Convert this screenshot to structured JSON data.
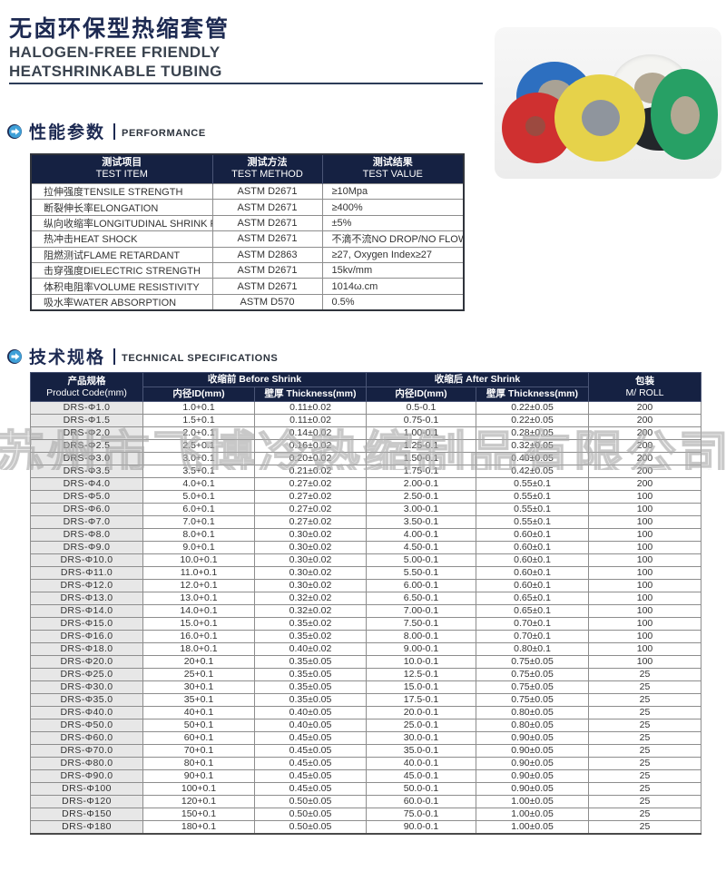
{
  "header": {
    "title_cn": "无卤环保型热缩套管",
    "subtitle_line1": "HALOGEN-FREE FRIENDLY",
    "subtitle_line2": "HEATSHRINKABLE TUBING"
  },
  "watermark_text": "苏州市飞博冷热缩制品有限公司",
  "photo": {
    "rolls": [
      "blue",
      "white",
      "black",
      "red",
      "yellow",
      "green"
    ],
    "colors": {
      "blue": "#2d6fc0",
      "white": "#f4f4f1",
      "black": "#23262a",
      "red": "#cf3030",
      "yellow": "#e6d24a",
      "green": "#27a065"
    }
  },
  "colors": {
    "accent_navy": "#1d2a52",
    "table_header_bg": "#152142",
    "icon_blue": "#3fa0d8"
  },
  "sections": {
    "performance": {
      "title_cn": "性能参数",
      "title_en": "PERFORMANCE"
    },
    "specs": {
      "title_cn": "技术规格",
      "title_en": "TECHNICAL SPECIFICATIONS"
    }
  },
  "performance_table": {
    "headers": [
      {
        "cn": "测试项目",
        "en": "TEST ITEM"
      },
      {
        "cn": "测试方法",
        "en": "TEST METHOD"
      },
      {
        "cn": "测试结果",
        "en": "TEST VALUE"
      }
    ],
    "rows": [
      [
        "拉伸强度TENSILE STRENGTH",
        "ASTM D2671",
        "≥10Mpa"
      ],
      [
        "断裂伸长率ELONGATION",
        "ASTM D2671",
        "≥400%"
      ],
      [
        "纵向收缩率LONGITUDINAL SHRINK RATIO",
        "ASTM D2671",
        "±5%"
      ],
      [
        "热冲击HEAT SHOCK",
        "ASTM D2671",
        "不滴不流NO DROP/NO FLOW"
      ],
      [
        "阻燃测试FLAME RETARDANT",
        "ASTM D2863",
        "≥27, Oxygen Index≥27"
      ],
      [
        "击穿强度DIELECTRIC STRENGTH",
        "ASTM D2671",
        "15kv/mm"
      ],
      [
        "体积电阻率VOLUME RESISTIVITY",
        "ASTM D2671",
        "1014ω.cm"
      ],
      [
        "吸水率WATER ABSORPTION",
        "ASTM D570",
        "0.5%"
      ]
    ]
  },
  "spec_table": {
    "product_col": {
      "cn": "产品规格",
      "en": "Product Code(mm)"
    },
    "before_group": {
      "label": "收缩前 Before Shrink",
      "id": "内径ID(mm)",
      "thickness": "壁厚 Thickness(mm)"
    },
    "after_group": {
      "label": "收缩后 After Shrink",
      "id": "内径ID(mm)",
      "thickness": "壁厚 Thickness(mm)"
    },
    "pack_col": {
      "cn": "包装",
      "en": "M/ ROLL"
    },
    "rows": [
      [
        "DRS-Φ1.0",
        "1.0+0.1",
        "0.11±0.02",
        "0.5-0.1",
        "0.22±0.05",
        "200"
      ],
      [
        "DRS-Φ1.5",
        "1.5+0.1",
        "0.11±0.02",
        "0.75-0.1",
        "0.22±0.05",
        "200"
      ],
      [
        "DRS-Φ2.0",
        "2.0+0.1",
        "0.14±0.02",
        "1.00-0.1",
        "0.28±0.05",
        "200"
      ],
      [
        "DRS-Φ2.5",
        "2.5+0.1",
        "0.16±0.02",
        "1.25-0.1",
        "0.32±0.05",
        "200"
      ],
      [
        "DRS-Φ3.0",
        "3.0+0.1",
        "0.20±0.02",
        "1.50-0.1",
        "0.40±0.05",
        "200"
      ],
      [
        "DRS-Φ3.5",
        "3.5+0.1",
        "0.21±0.02",
        "1.75-0.1",
        "0.42±0.05",
        "200"
      ],
      [
        "DRS-Φ4.0",
        "4.0+0.1",
        "0.27±0.02",
        "2.00-0.1",
        "0.55±0.1",
        "200"
      ],
      [
        "DRS-Φ5.0",
        "5.0+0.1",
        "0.27±0.02",
        "2.50-0.1",
        "0.55±0.1",
        "100"
      ],
      [
        "DRS-Φ6.0",
        "6.0+0.1",
        "0.27±0.02",
        "3.00-0.1",
        "0.55±0.1",
        "100"
      ],
      [
        "DRS-Φ7.0",
        "7.0+0.1",
        "0.27±0.02",
        "3.50-0.1",
        "0.55±0.1",
        "100"
      ],
      [
        "DRS-Φ8.0",
        "8.0+0.1",
        "0.30±0.02",
        "4.00-0.1",
        "0.60±0.1",
        "100"
      ],
      [
        "DRS-Φ9.0",
        "9.0+0.1",
        "0.30±0.02",
        "4.50-0.1",
        "0.60±0.1",
        "100"
      ],
      [
        "DRS-Φ10.0",
        "10.0+0.1",
        "0.30±0.02",
        "5.00-0.1",
        "0.60±0.1",
        "100"
      ],
      [
        "DRS-Φ11.0",
        "11.0+0.1",
        "0.30±0.02",
        "5.50-0.1",
        "0.60±0.1",
        "100"
      ],
      [
        "DRS-Φ12.0",
        "12.0+0.1",
        "0.30±0.02",
        "6.00-0.1",
        "0.60±0.1",
        "100"
      ],
      [
        "DRS-Φ13.0",
        "13.0+0.1",
        "0.32±0.02",
        "6.50-0.1",
        "0.65±0.1",
        "100"
      ],
      [
        "DRS-Φ14.0",
        "14.0+0.1",
        "0.32±0.02",
        "7.00-0.1",
        "0.65±0.1",
        "100"
      ],
      [
        "DRS-Φ15.0",
        "15.0+0.1",
        "0.35±0.02",
        "7.50-0.1",
        "0.70±0.1",
        "100"
      ],
      [
        "DRS-Φ16.0",
        "16.0+0.1",
        "0.35±0.02",
        "8.00-0.1",
        "0.70±0.1",
        "100"
      ],
      [
        "DRS-Φ18.0",
        "18.0+0.1",
        "0.40±0.02",
        "9.00-0.1",
        "0.80±0.1",
        "100"
      ],
      [
        "DRS-Φ20.0",
        "20+0.1",
        "0.35±0.05",
        "10.0-0.1",
        "0.75±0.05",
        "100"
      ],
      [
        "DRS-Φ25.0",
        "25+0.1",
        "0.35±0.05",
        "12.5-0.1",
        "0.75±0.05",
        "25"
      ],
      [
        "DRS-Φ30.0",
        "30+0.1",
        "0.35±0.05",
        "15.0-0.1",
        "0.75±0.05",
        "25"
      ],
      [
        "DRS-Φ35.0",
        "35+0.1",
        "0.35±0.05",
        "17.5-0.1",
        "0.75±0.05",
        "25"
      ],
      [
        "DRS-Φ40.0",
        "40+0.1",
        "0.40±0.05",
        "20.0-0.1",
        "0.80±0.05",
        "25"
      ],
      [
        "DRS-Φ50.0",
        "50+0.1",
        "0.40±0.05",
        "25.0-0.1",
        "0.80±0.05",
        "25"
      ],
      [
        "DRS-Φ60.0",
        "60+0.1",
        "0.45±0.05",
        "30.0-0.1",
        "0.90±0.05",
        "25"
      ],
      [
        "DRS-Φ70.0",
        "70+0.1",
        "0.45±0.05",
        "35.0-0.1",
        "0.90±0.05",
        "25"
      ],
      [
        "DRS-Φ80.0",
        "80+0.1",
        "0.45±0.05",
        "40.0-0.1",
        "0.90±0.05",
        "25"
      ],
      [
        "DRS-Φ90.0",
        "90+0.1",
        "0.45±0.05",
        "45.0-0.1",
        "0.90±0.05",
        "25"
      ],
      [
        "DRS-Φ100",
        "100+0.1",
        "0.45±0.05",
        "50.0-0.1",
        "0.90±0.05",
        "25"
      ],
      [
        "DRS-Φ120",
        "120+0.1",
        "0.50±0.05",
        "60.0-0.1",
        "1.00±0.05",
        "25"
      ],
      [
        "DRS-Φ150",
        "150+0.1",
        "0.50±0.05",
        "75.0-0.1",
        "1.00±0.05",
        "25"
      ],
      [
        "DRS-Φ180",
        "180+0.1",
        "0.50±0.05",
        "90.0-0.1",
        "1.00±0.05",
        "25"
      ]
    ]
  }
}
